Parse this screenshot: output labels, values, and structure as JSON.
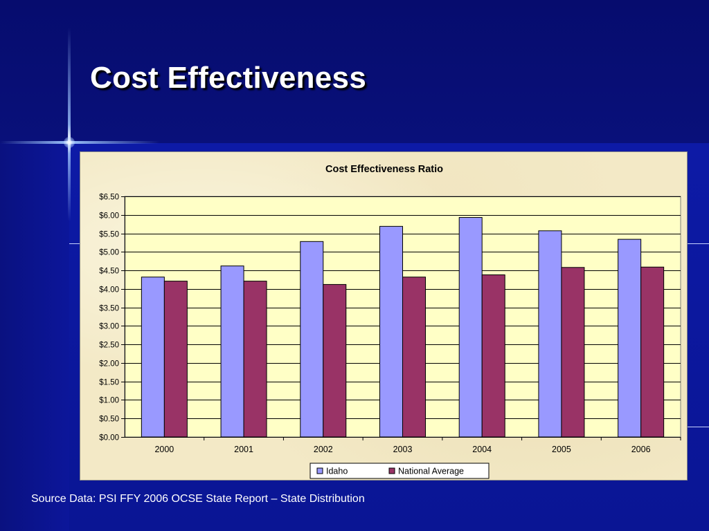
{
  "slide": {
    "title": "Cost Effectiveness",
    "source_note": "Source Data: PSI FFY 2006 OCSE State Report – State Distribution"
  },
  "colors": {
    "background": "#0a1390",
    "plot_area": "#ffffc6",
    "idaho": "#9999ff",
    "national_average": "#993366"
  },
  "chart_data": {
    "type": "bar",
    "title": "Cost Effectiveness Ratio",
    "xlabel": "",
    "ylabel": "",
    "categories": [
      "2000",
      "2001",
      "2002",
      "2003",
      "2004",
      "2005",
      "2006"
    ],
    "series": [
      {
        "name": "Idaho",
        "color": "#9999ff",
        "values": [
          4.32,
          4.62,
          5.28,
          5.69,
          5.93,
          5.57,
          5.34
        ]
      },
      {
        "name": "National Average",
        "color": "#993366",
        "values": [
          4.21,
          4.21,
          4.12,
          4.32,
          4.38,
          4.58,
          4.59
        ]
      }
    ],
    "ylim": [
      0,
      6.5
    ],
    "yticks": [
      "$0.00",
      "$0.50",
      "$1.00",
      "$1.50",
      "$2.00",
      "$2.50",
      "$3.00",
      "$3.50",
      "$4.00",
      "$4.50",
      "$5.00",
      "$5.50",
      "$6.00",
      "$6.50"
    ],
    "grid": true,
    "legend": "bottom"
  }
}
